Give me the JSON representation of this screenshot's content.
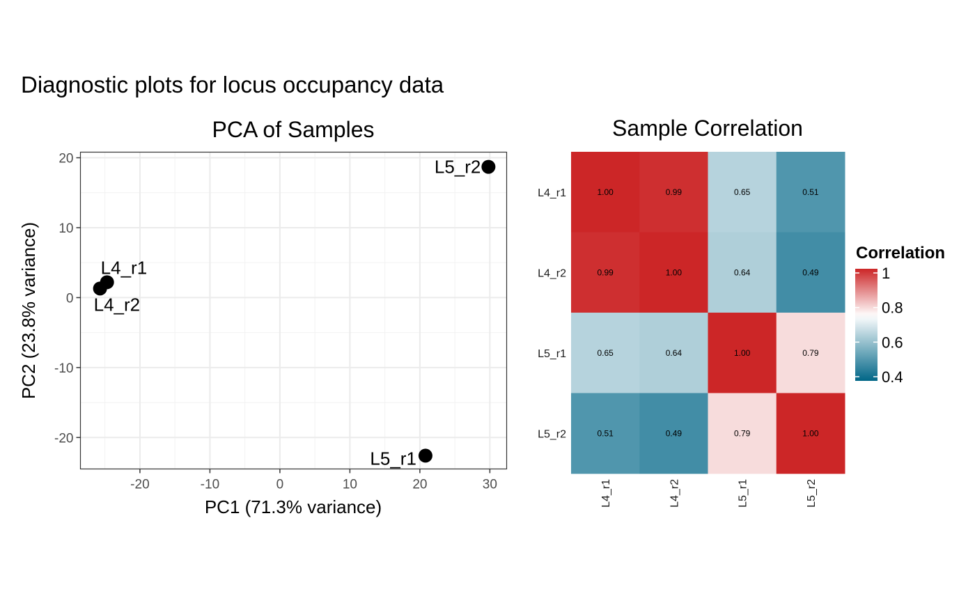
{
  "page_title": "Diagnostic plots for locus occupancy data",
  "chart_data": [
    {
      "type": "scatter",
      "title": "PCA of Samples",
      "xlabel": "PC1 (71.3% variance)",
      "ylabel": "PC2 (23.8% variance)",
      "xlim": [
        -28.5,
        32.4
      ],
      "ylim": [
        -24.5,
        20.8
      ],
      "xticks": [
        -20,
        -10,
        0,
        10,
        20,
        30
      ],
      "yticks": [
        -20,
        -10,
        0,
        10,
        20
      ],
      "xtick_labels": [
        "-20",
        "-10",
        "0",
        "10",
        "20",
        "30"
      ],
      "ytick_labels": [
        "-20",
        "-10",
        "0",
        "10",
        "20"
      ],
      "grid": true,
      "points": [
        {
          "label": "L4_r1",
          "x": -24.7,
          "y": 2.2
        },
        {
          "label": "L4_r2",
          "x": -25.7,
          "y": 1.3
        },
        {
          "label": "L5_r1",
          "x": 20.8,
          "y": -22.6
        },
        {
          "label": "L5_r2",
          "x": 29.8,
          "y": 18.7
        }
      ]
    },
    {
      "type": "heatmap",
      "title": "Sample Correlation",
      "rows": [
        "L4_r1",
        "L4_r2",
        "L5_r1",
        "L5_r2"
      ],
      "cols": [
        "L4_r1",
        "L4_r2",
        "L5_r1",
        "L5_r2"
      ],
      "values": [
        [
          1.0,
          0.99,
          0.65,
          0.51
        ],
        [
          0.99,
          1.0,
          0.64,
          0.49
        ],
        [
          0.65,
          0.64,
          1.0,
          0.79
        ],
        [
          0.51,
          0.49,
          0.79,
          1.0
        ]
      ],
      "legend": {
        "title": "Correlation",
        "placement": "right",
        "range": [
          0.4,
          1.0
        ],
        "ticks": [
          1,
          0.8,
          0.6,
          0.4
        ],
        "tick_labels": [
          "1",
          "0.8",
          "0.6",
          "0.4"
        ],
        "colors": {
          "low": "#006687",
          "mid": "#ffffff",
          "high": "#cc2627"
        },
        "midpoint": 0.75
      }
    }
  ]
}
